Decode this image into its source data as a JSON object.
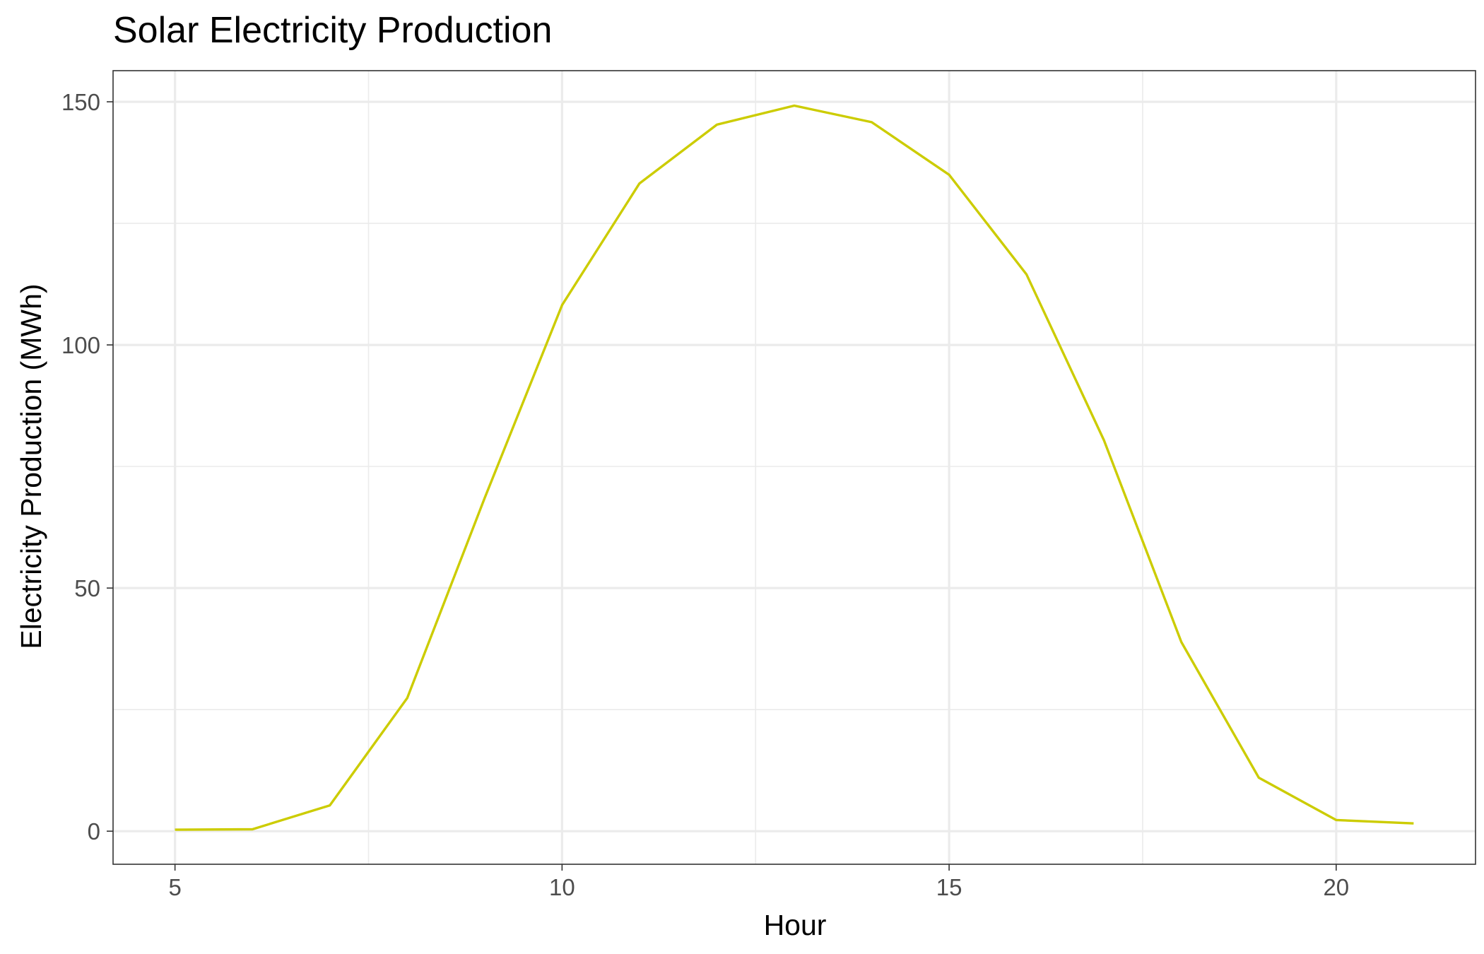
{
  "chart_data": {
    "type": "line",
    "title": "Solar Electricity Production",
    "xlabel": "Hour",
    "ylabel": "Electricity Production (MWh)",
    "xlim": [
      4.2,
      21.8
    ],
    "ylim": [
      -6.8,
      156.4
    ],
    "x_ticks": [
      5,
      10,
      15,
      20
    ],
    "x_tick_labels": [
      "5",
      "10",
      "15",
      "20"
    ],
    "y_ticks": [
      0,
      50,
      100,
      150
    ],
    "y_tick_labels": [
      "0",
      "50",
      "100",
      "150"
    ],
    "grid": true,
    "legend": "none",
    "series": [
      {
        "color": "#cccc00",
        "x": [
          5,
          6,
          7,
          8,
          9,
          10,
          11,
          12,
          13,
          14,
          15,
          16,
          17,
          18,
          19,
          20,
          21
        ],
        "y": [
          0.3,
          0.4,
          5.3,
          27.4,
          68.5,
          108.2,
          133.2,
          145.3,
          149.2,
          145.8,
          135.0,
          114.5,
          80.4,
          38.9,
          11.0,
          2.3,
          1.6
        ]
      }
    ]
  }
}
